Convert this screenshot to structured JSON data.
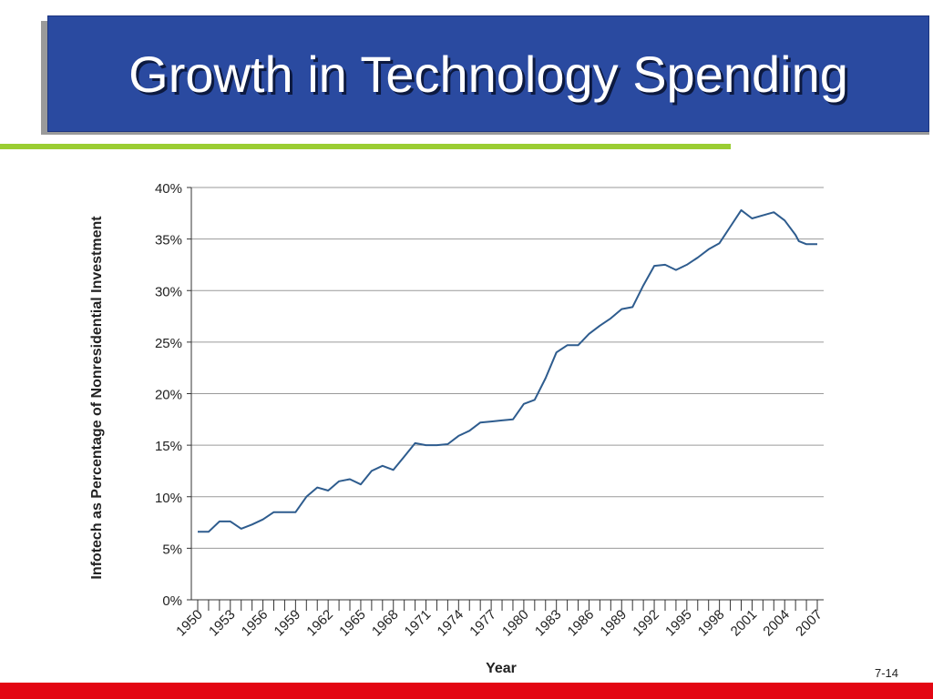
{
  "slide": {
    "title": "Growth in Technology Spending",
    "slide_number": "7-14"
  },
  "colors": {
    "title_bg": "#2a4aa0",
    "accent_line": "#9acd32",
    "bottom_bar": "#e30613",
    "series_line": "#2e5c8e"
  },
  "chart_data": {
    "type": "line",
    "xlabel": "Year",
    "ylabel": "Infotech as Percentage of Nonresidential Investment",
    "ylim": [
      0,
      40
    ],
    "yticks": [
      "0%",
      "5%",
      "10%",
      "15%",
      "20%",
      "25%",
      "30%",
      "35%",
      "40%"
    ],
    "xlim": [
      1950,
      2007
    ],
    "xtick_labels": [
      "1950",
      "1953",
      "1956",
      "1959",
      "1962",
      "1965",
      "1968",
      "1971",
      "1974",
      "1977",
      "1980",
      "1983",
      "1986",
      "1989",
      "1992",
      "1995",
      "1998",
      "2001",
      "2004",
      "2007"
    ],
    "grid": true,
    "series": [
      {
        "x": [
          1950,
          1951,
          1952,
          1953,
          1954,
          1955,
          1956,
          1957,
          1958,
          1959,
          1960,
          1961,
          1962,
          1963,
          1964,
          1965,
          1966,
          1967,
          1968,
          1969,
          1970,
          1971,
          1972,
          1973,
          1974,
          1975,
          1976,
          1977,
          1978,
          1979,
          1980,
          1981,
          1982,
          1983,
          1984,
          1985,
          1986,
          1987,
          1988,
          1989,
          1990,
          1991,
          1992,
          1993,
          1994,
          1995,
          1996,
          1997,
          1998,
          1999,
          2000,
          2001,
          2002,
          2003,
          2004,
          2005,
          2005.3,
          2006,
          2007
        ],
        "y": [
          6.6,
          6.6,
          7.6,
          7.6,
          6.9,
          7.3,
          7.8,
          8.5,
          8.5,
          8.5,
          10.0,
          10.9,
          10.6,
          11.5,
          11.7,
          11.2,
          12.5,
          13.0,
          12.6,
          13.9,
          15.2,
          15.0,
          15.0,
          15.1,
          15.9,
          16.4,
          17.2,
          17.3,
          17.4,
          17.5,
          19.0,
          19.4,
          21.5,
          24.0,
          24.7,
          24.7,
          25.8,
          26.6,
          27.3,
          28.2,
          28.4,
          30.5,
          32.4,
          32.5,
          32.0,
          32.5,
          33.2,
          34.0,
          34.6,
          36.2,
          37.8,
          37.0,
          37.3,
          37.6,
          36.8,
          35.4,
          34.8,
          34.5,
          34.5
        ]
      }
    ]
  }
}
